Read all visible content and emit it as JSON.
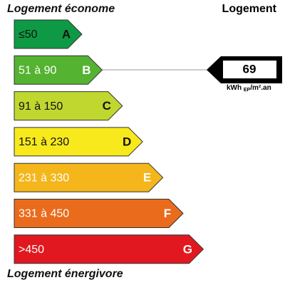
{
  "header": {
    "left_title": "Logement économe",
    "right_title": "Logement"
  },
  "footer": {
    "title": "Logement énergivore"
  },
  "classes": [
    {
      "range": "≤50",
      "letter": "A",
      "color": "#0e9a44",
      "text_color": "#111"
    },
    {
      "range": "51 à 90",
      "letter": "B",
      "color": "#54b331",
      "text_color": "#fff"
    },
    {
      "range": "91 à 150",
      "letter": "C",
      "color": "#c0d72f",
      "text_color": "#111"
    },
    {
      "range": "151 à 230",
      "letter": "D",
      "color": "#f7e91c",
      "text_color": "#111"
    },
    {
      "range": "231 à 330",
      "letter": "E",
      "color": "#f4b61b",
      "text_color": "#fff"
    },
    {
      "range": "331 à 450",
      "letter": "F",
      "color": "#ea6b1c",
      "text_color": "#fff"
    },
    {
      "range": ">450",
      "letter": "G",
      "color": "#e1181f",
      "text_color": "#fff"
    }
  ],
  "indicator": {
    "value": "69",
    "unit": "kWh",
    "unit_sub": "EP",
    "unit_suffix": "/m².an"
  }
}
